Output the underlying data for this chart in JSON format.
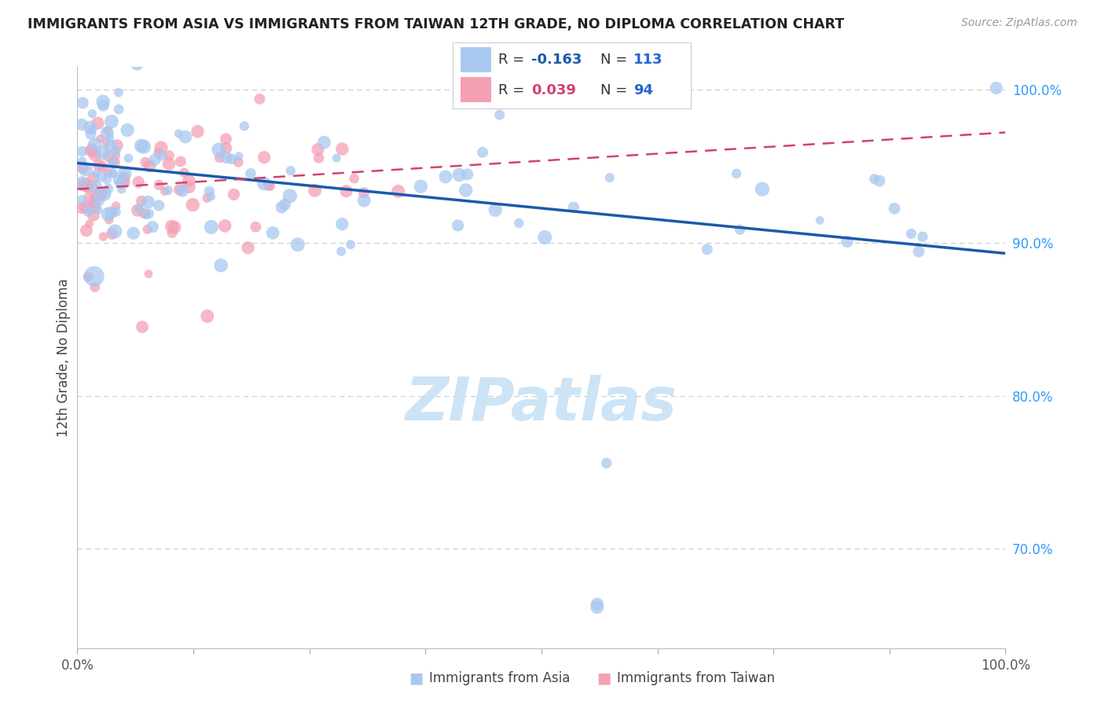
{
  "title": "IMMIGRANTS FROM ASIA VS IMMIGRANTS FROM TAIWAN 12TH GRADE, NO DIPLOMA CORRELATION CHART",
  "source": "Source: ZipAtlas.com",
  "ylabel": "12th Grade, No Diploma",
  "xlim": [
    0.0,
    1.0
  ],
  "ylim": [
    0.635,
    1.015
  ],
  "blue_color": "#a8c8f0",
  "pink_color": "#f4a0b4",
  "blue_line_color": "#1a5aaa",
  "pink_line_color": "#d44070",
  "legend_blue_r_color": "#1a5aaa",
  "legend_pink_r_color": "#d44070",
  "legend_n_color": "#2266cc",
  "watermark_color": "#cce4f6",
  "grid_color": "#cccccc",
  "background_color": "#ffffff",
  "blue_trend_y_start": 0.952,
  "blue_trend_y_end": 0.893,
  "pink_trend_y_start": 0.935,
  "pink_trend_y_end": 0.972,
  "marker_size": 200
}
